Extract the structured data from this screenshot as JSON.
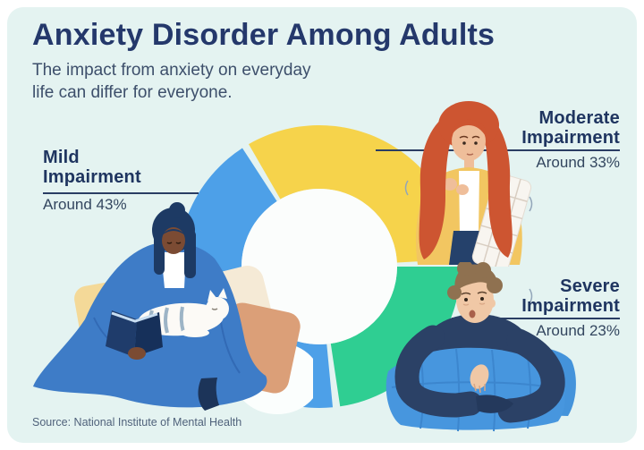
{
  "header": {
    "title": "Anxiety Disorder Among Adults",
    "subtitle_line1": "The impact from anxiety on everyday",
    "subtitle_line2": "life can differ for everyone."
  },
  "footer": {
    "source": "Source: National Institute of Mental Health"
  },
  "colors": {
    "card_background": "#E4F3F1",
    "title_text": "#24386B",
    "label_text": "#1F3560",
    "connector_line": "#2A3D63",
    "mild_blue": "#4DA0E8",
    "moderate_yellow": "#F6D34B",
    "severe_green": "#2FCE92",
    "donut_hole": "#FBFDFC"
  },
  "chart_data": {
    "type": "pie",
    "variant": "donut",
    "title": "Anxiety Disorder Among Adults",
    "subtitle": "The impact from anxiety on everyday life can differ for everyone.",
    "source": "Source: National Institute of Mental Health",
    "legend_position": "callouts-around-donut",
    "grid": false,
    "start_angle_deg": 120,
    "gap_deg": 3,
    "categories": [
      "Mild Impairment",
      "Moderate Impairment",
      "Severe Impairment"
    ],
    "values": [
      43,
      33,
      23
    ],
    "segments": [
      {
        "label": "Moderate Impairment",
        "label_line1": "Moderate",
        "label_line2": "Impairment",
        "amount_text": "Around 33%",
        "value_pct": 33,
        "color": "#F6D34B"
      },
      {
        "label": "Severe Impairment",
        "label_line1": "Severe",
        "label_line2": "Impairment",
        "amount_text": "Around 23%",
        "value_pct": 23,
        "color": "#2FCE92"
      },
      {
        "label": "Mild Impairment",
        "label_line1": "Mild",
        "label_line2": "Impairment",
        "amount_text": "Around 43%",
        "value_pct": 43,
        "color": "#4DA0E8"
      }
    ]
  }
}
